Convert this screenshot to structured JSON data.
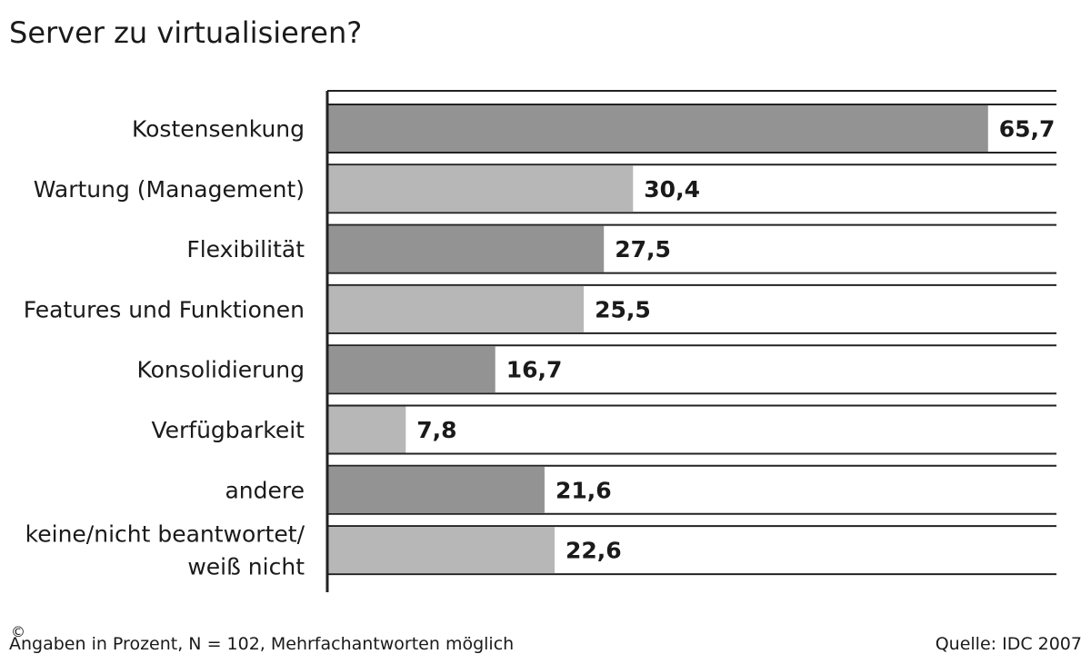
{
  "chart_data": {
    "type": "bar",
    "orientation": "horizontal",
    "title": "Server zu virtualisieren?",
    "categories": [
      "Kostensenkung",
      "Wartung (Management)",
      "Flexibilität",
      "Features und Funktionen",
      "Konsolidierung",
      "Verfügbarkeit",
      "andere",
      "keine/nicht beantwortet/ weiß nicht"
    ],
    "values": [
      65.7,
      30.4,
      27.5,
      25.5,
      16.7,
      7.8,
      21.6,
      22.6
    ],
    "value_labels": [
      "65,7",
      "30,4",
      "27,5",
      "25,5",
      "16,7",
      "7,8",
      "21,6",
      "22,6"
    ],
    "xlim": [
      0,
      72.5
    ],
    "grid": false,
    "legend": "none",
    "colors": {
      "dark": "#939393",
      "light": "#b7b7b7",
      "line": "#222222"
    }
  },
  "footer": {
    "note": "Angaben in Prozent, N = 102, Mehrfachantworten möglich",
    "source": "Quelle: IDC 2007",
    "copyright": "©"
  }
}
